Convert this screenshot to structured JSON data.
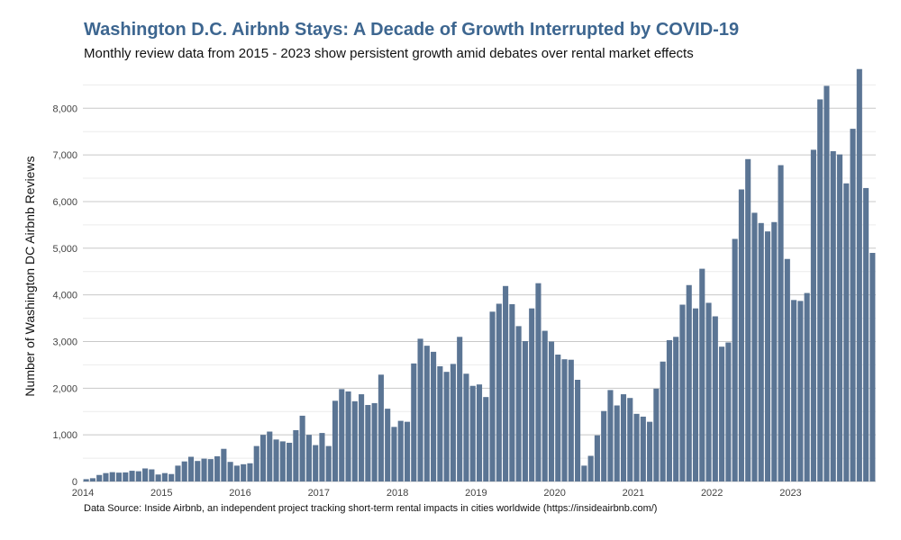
{
  "chart_data": {
    "type": "bar",
    "title": "Washington D.C. Airbnb Stays: A Decade of Growth Interrupted by COVID-19",
    "subtitle": "Monthly review data from 2015 - 2023 show persistent growth amid debates over rental market effects",
    "caption": "Data Source: Inside Airbnb, an independent project tracking short-term rental impacts in cities worldwide (https://insideairbnb.com/)",
    "xlabel": "",
    "ylabel": "Number of Washington DC Airbnb Reviews",
    "x_start": "2014-01",
    "x_ticks": [
      "2014",
      "2015",
      "2016",
      "2017",
      "2018",
      "2019",
      "2020",
      "2021",
      "2022",
      "2023"
    ],
    "y_ticks": [
      "0",
      "1,000",
      "2,000",
      "3,000",
      "4,000",
      "5,000",
      "6,000",
      "7,000",
      "8,000"
    ],
    "ylim": [
      0,
      8700
    ],
    "grid": true,
    "bar_color": "#5b7594",
    "title_color": "#3d6690",
    "values": [
      50,
      70,
      140,
      180,
      200,
      190,
      195,
      230,
      220,
      280,
      260,
      150,
      180,
      160,
      340,
      430,
      530,
      440,
      490,
      480,
      540,
      700,
      420,
      340,
      370,
      390,
      760,
      1000,
      1070,
      900,
      860,
      830,
      1100,
      1410,
      1000,
      780,
      1040,
      760,
      1730,
      1980,
      1930,
      1720,
      1870,
      1640,
      1680,
      2290,
      1560,
      1170,
      1300,
      1280,
      2530,
      3060,
      2910,
      2780,
      2470,
      2350,
      2520,
      3100,
      2310,
      2050,
      2080,
      1810,
      3640,
      3810,
      4190,
      3800,
      3330,
      3010,
      3710,
      4250,
      3230,
      3000,
      2720,
      2620,
      2610,
      2180,
      340,
      550,
      990,
      1510,
      1960,
      1630,
      1870,
      1790,
      1450,
      1390,
      1280,
      1990,
      2570,
      3030,
      3100,
      3790,
      4210,
      3710,
      4560,
      3830,
      3540,
      2890,
      2980,
      5200,
      6260,
      6910,
      5760,
      5540,
      5360,
      5560,
      6780,
      4770,
      3890,
      3870,
      4040,
      7110,
      8190,
      8480,
      7080,
      7010,
      6390,
      7560,
      8840,
      6290,
      4900
    ]
  }
}
